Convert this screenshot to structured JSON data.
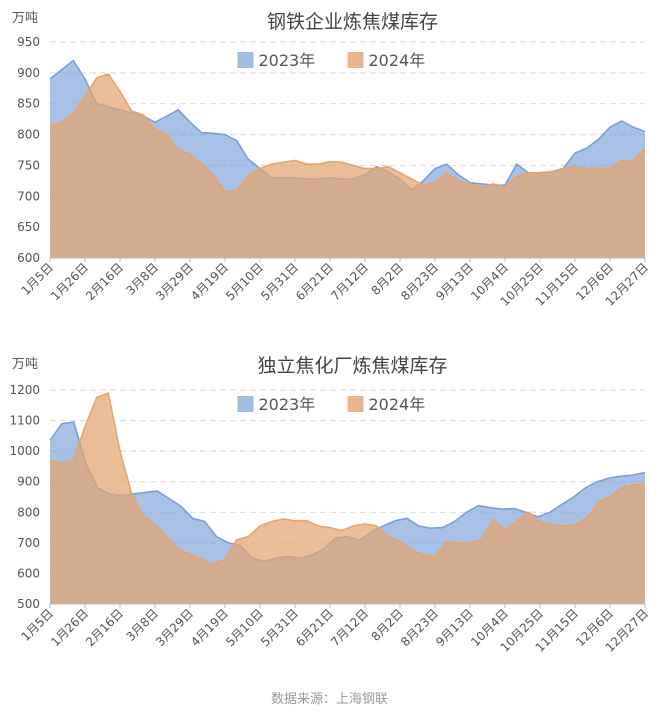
{
  "source_note": "数据来源：上海钢联",
  "colors": {
    "s2023": "#7a9fd8",
    "s2024": "#e5a56f",
    "overlap": "#b99082",
    "grid": "#d9d9d9",
    "text": "#555555"
  },
  "chart_data": [
    {
      "type": "area",
      "title": "钢铁企业炼焦煤库存",
      "unit_label": "万吨",
      "legend_position": "top-center",
      "grid": true,
      "ylim": [
        600,
        950
      ],
      "yticks": [
        600,
        650,
        700,
        750,
        800,
        850,
        900,
        950
      ],
      "xticks": [
        "1月5日",
        "1月26日",
        "2月16日",
        "3月8日",
        "3月29日",
        "4月19日",
        "5月10日",
        "5月31日",
        "6月21日",
        "7月12日",
        "8月2日",
        "8月23日",
        "9月13日",
        "10月4日",
        "10月25日",
        "11月15日",
        "12月6日",
        "12月27日"
      ],
      "series": [
        {
          "name": "2023年",
          "values": [
            890,
            905,
            920,
            890,
            850,
            845,
            840,
            835,
            830,
            820,
            830,
            840,
            820,
            803,
            802,
            800,
            790,
            760,
            745,
            730,
            730,
            730,
            728,
            728,
            730,
            728,
            728,
            735,
            748,
            740,
            728,
            710,
            725,
            745,
            752,
            735,
            722,
            720,
            718,
            718,
            752,
            738,
            738,
            740,
            745,
            770,
            778,
            792,
            812,
            822,
            812,
            805
          ]
        },
        {
          "name": "2024年",
          "values": [
            815,
            820,
            835,
            862,
            892,
            898,
            870,
            838,
            832,
            808,
            800,
            775,
            768,
            752,
            735,
            708,
            708,
            735,
            745,
            752,
            755,
            758,
            752,
            752,
            756,
            755,
            750,
            745,
            745,
            748,
            738,
            728,
            718,
            722,
            738,
            725,
            720,
            715,
            720,
            715,
            732,
            738,
            738,
            740,
            745,
            748,
            745,
            745,
            745,
            758,
            758,
            778
          ]
        }
      ]
    },
    {
      "type": "area",
      "title": "独立焦化厂炼焦煤库存",
      "unit_label": "万吨",
      "legend_position": "top-center",
      "grid": true,
      "ylim": [
        500,
        1200
      ],
      "yticks": [
        500,
        600,
        700,
        800,
        900,
        1000,
        1100,
        1200
      ],
      "xticks": [
        "1月5日",
        "1月26日",
        "2月16日",
        "3月8日",
        "3月29日",
        "4月19日",
        "5月10日",
        "5月31日",
        "6月21日",
        "7月12日",
        "8月2日",
        "8月23日",
        "9月13日",
        "10月4日",
        "10月25日",
        "11月15日",
        "12月6日",
        "12月27日"
      ],
      "series": [
        {
          "name": "2023年",
          "values": [
            1035,
            1090,
            1095,
            960,
            880,
            860,
            855,
            860,
            865,
            870,
            845,
            820,
            780,
            770,
            720,
            700,
            690,
            650,
            640,
            650,
            655,
            650,
            660,
            680,
            715,
            720,
            708,
            735,
            755,
            772,
            780,
            755,
            748,
            750,
            770,
            800,
            822,
            815,
            810,
            812,
            800,
            785,
            800,
            825,
            850,
            880,
            900,
            912,
            918,
            922,
            930
          ]
        },
        {
          "name": "2024年",
          "values": [
            968,
            962,
            968,
            1080,
            1175,
            1190,
            1000,
            860,
            790,
            760,
            720,
            680,
            662,
            648,
            630,
            648,
            710,
            720,
            755,
            770,
            778,
            772,
            772,
            755,
            750,
            740,
            755,
            762,
            755,
            720,
            705,
            675,
            660,
            655,
            705,
            700,
            700,
            712,
            775,
            742,
            770,
            800,
            768,
            760,
            755,
            760,
            780,
            832,
            852,
            880,
            890,
            892
          ]
        }
      ]
    }
  ]
}
